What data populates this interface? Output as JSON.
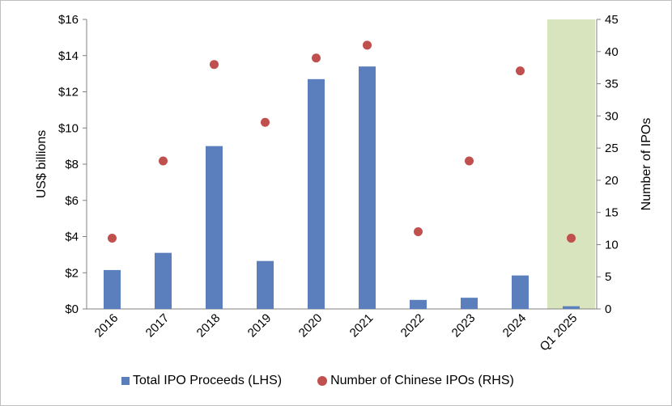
{
  "colors": {
    "bar": "#5b7fbd",
    "dot": "#c0504d",
    "highlight": "#d7e4bd"
  },
  "chart_data": {
    "type": "bar",
    "categories": [
      "2016",
      "2017",
      "2018",
      "2019",
      "2020",
      "2021",
      "2022",
      "2023",
      "2024",
      "Q1 2025"
    ],
    "series": [
      {
        "name": "Total IPO Proceeds (LHS)",
        "type": "bar",
        "axis": "left",
        "values": [
          2.15,
          3.1,
          9.0,
          2.65,
          12.7,
          13.4,
          0.5,
          0.62,
          1.85,
          0.15
        ]
      },
      {
        "name": "Number of Chinese IPOs (RHS)",
        "type": "scatter",
        "axis": "right",
        "values": [
          11,
          23,
          38,
          29,
          39,
          41,
          12,
          23,
          37,
          11
        ]
      }
    ],
    "ylabel": "US$ billions",
    "y2label": "Number of IPOs",
    "ylim": [
      0,
      16
    ],
    "y2lim": [
      0,
      45
    ],
    "yticks": [
      "$0",
      "$2",
      "$4",
      "$6",
      "$8",
      "$10",
      "$12",
      "$14",
      "$16"
    ],
    "y2ticks": [
      "0",
      "5",
      "10",
      "15",
      "20",
      "25",
      "30",
      "35",
      "40",
      "45"
    ],
    "highlighted_category": "Q1 2025",
    "legend_position": "bottom"
  }
}
